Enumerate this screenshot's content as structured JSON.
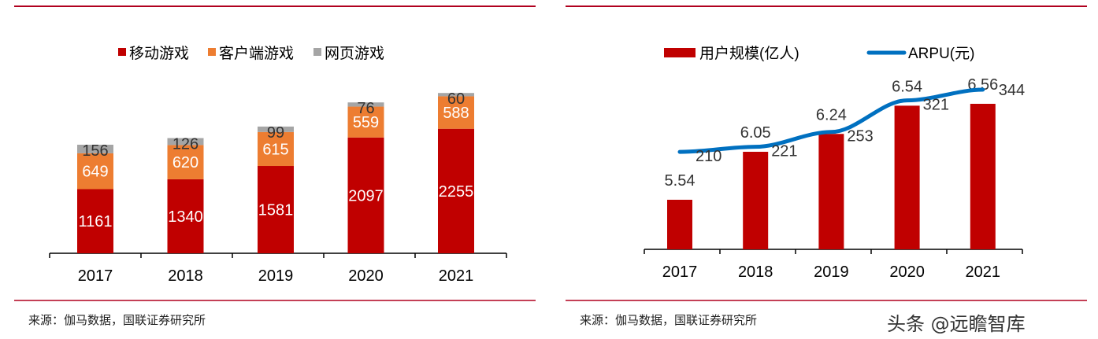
{
  "source_left": "来源：伽马数据，国联证券研究所",
  "source_right": "来源：伽马数据，国联证券研究所",
  "watermark": "头条 @远瞻智库",
  "colors": {
    "rule": "#b0001e",
    "mobile": "#c00000",
    "client": "#ed7d31",
    "web": "#a5a5a5",
    "arpu": "#0070c0"
  },
  "chart_data": [
    {
      "type": "bar",
      "stacked": true,
      "categories": [
        "2017",
        "2018",
        "2019",
        "2020",
        "2021"
      ],
      "series": [
        {
          "name": "移动游戏",
          "values": [
            1161,
            1340,
            1581,
            2097,
            2255
          ]
        },
        {
          "name": "客户端游戏",
          "values": [
            649,
            620,
            615,
            559,
            588
          ]
        },
        {
          "name": "网页游戏",
          "values": [
            156,
            126,
            99,
            76,
            60
          ]
        }
      ],
      "legend": "top",
      "grid": false
    },
    {
      "type": "bar+line",
      "categories": [
        "2017",
        "2018",
        "2019",
        "2020",
        "2021"
      ],
      "series": [
        {
          "name": "用户规模(亿人)",
          "type": "bar",
          "values": [
            5.54,
            6.05,
            6.24,
            6.54,
            6.56
          ]
        },
        {
          "name": "ARPU(元)",
          "type": "line",
          "values": [
            210,
            221,
            253,
            321,
            344
          ]
        }
      ],
      "legend": "top",
      "grid": false
    }
  ]
}
